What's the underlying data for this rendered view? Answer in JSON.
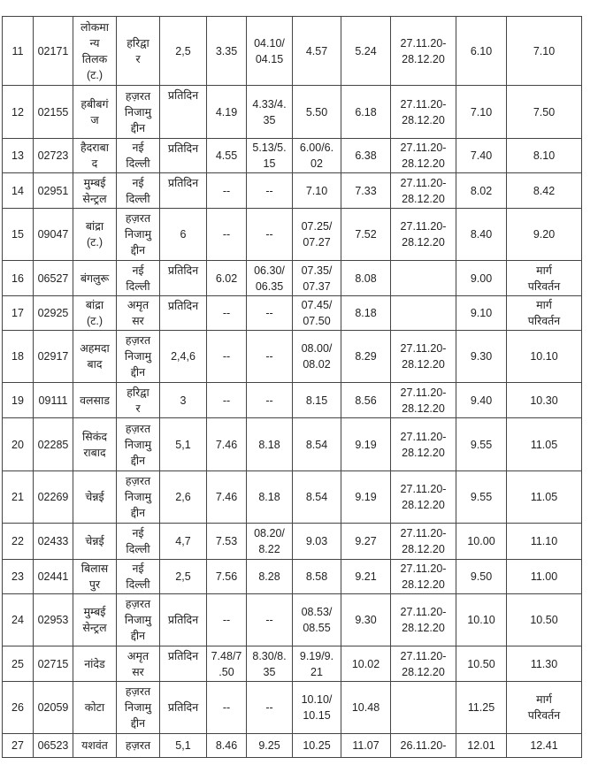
{
  "rows": [
    {
      "cells": [
        "11",
        "02171",
        "लोकमा\nन्य\nतिलक\n(ट.)",
        "हरिद्वा\nर",
        "2,5",
        "3.35",
        "04.10/\n04.15",
        "4.57",
        "5.24",
        "27.11.20-\n28.12.20",
        "6.10",
        "7.10"
      ]
    },
    {
      "cells": [
        "12",
        "02155",
        "हबीबगं\nज",
        "हज़रत\nनिजामु\nद्दीन",
        "प्रतिदिन",
        "4.19",
        "4.33/4.\n35",
        "5.50",
        "6.18",
        "27.11.20-\n28.12.20",
        "7.10",
        "7.50"
      ]
    },
    {
      "cells": [
        "13",
        "02723",
        "हैदराबा\nद",
        "नई\nदिल्ली",
        "प्रतिदिन",
        "4.55",
        "5.13/5.\n15",
        "6.00/6.\n02",
        "6.38",
        "27.11.20-\n28.12.20",
        "7.40",
        "8.10"
      ]
    },
    {
      "cells": [
        "14",
        "02951",
        "मुम्बई\nसेन्ट्रल",
        "नई\nदिल्ली",
        "प्रतिदिन",
        "--",
        "--",
        "7.10",
        "7.33",
        "27.11.20-\n28.12.20",
        "8.02",
        "8.42"
      ]
    },
    {
      "cells": [
        "15",
        "09047",
        "बांद्रा\n(ट.)",
        "हज़रत\nनिजामु\nद्दीन",
        "6",
        "--",
        "--",
        "07.25/\n07.27",
        "7.52",
        "27.11.20-\n28.12.20",
        "8.40",
        "9.20"
      ]
    },
    {
      "cells": [
        "16",
        "06527",
        "बंगलुरू",
        "नई\nदिल्ली",
        "प्रतिदिन",
        "6.02",
        "06.30/\n06.35",
        "07.35/\n07.37",
        "8.08",
        "",
        "9.00",
        "मार्ग\nपरिवर्तन"
      ]
    },
    {
      "cells": [
        "17",
        "02925",
        "बांद्रा\n(ट.)",
        "अमृत\nसर",
        "प्रतिदिन",
        "--",
        "--",
        "07.45/\n07.50",
        "8.18",
        "",
        "9.10",
        "मार्ग\nपरिवर्तन"
      ]
    },
    {
      "cells": [
        "18",
        "02917",
        "अहमदा\nबाद",
        "हज़रत\nनिजामु\nद्दीन",
        "2,4,6",
        "--",
        "--",
        "08.00/\n08.02",
        "8.29",
        "27.11.20-\n28.12.20",
        "9.30",
        "10.10"
      ]
    },
    {
      "cells": [
        "19",
        "09111",
        "वलसाड",
        "हरिद्वा\nर",
        "3",
        "--",
        "--",
        "8.15",
        "8.56",
        "27.11.20-\n28.12.20",
        "9.40",
        "10.30"
      ]
    },
    {
      "cells": [
        "20",
        "02285",
        "सिकंद\nराबाद",
        "हज़रत\nनिजामु\nद्दीन",
        "5,1",
        "7.46",
        "8.18",
        "8.54",
        "9.19",
        "27.11.20-\n28.12.20",
        "9.55",
        "11.05"
      ]
    },
    {
      "cells": [
        "21",
        "02269",
        "चेन्नई",
        "हज़रत\nनिजामु\nद्दीन",
        "2,6",
        "7.46",
        "8.18",
        "8.54",
        "9.19",
        "27.11.20-\n28.12.20",
        "9.55",
        "11.05"
      ]
    },
    {
      "cells": [
        "22",
        "02433",
        "चेन्नई",
        "नई\nदिल्ली",
        "4,7",
        "7.53",
        "08.20/\n8.22",
        "9.03",
        "9.27",
        "27.11.20-\n28.12.20",
        "10.00",
        "11.10"
      ]
    },
    {
      "cells": [
        "23",
        "02441",
        "बिलास\nपुर",
        "नई\nदिल्ली",
        "2,5",
        "7.56",
        "8.28",
        "8.58",
        "9.21",
        "27.11.20-\n28.12.20",
        "9.50",
        "11.00"
      ]
    },
    {
      "cells": [
        "24",
        "02953",
        "मुम्बई\nसेन्ट्रल",
        "हज़रत\nनिजामु\nद्दीन",
        "प्रतिदिन",
        "--",
        "--",
        "08.53/\n08.55",
        "9.30",
        "27.11.20-\n28.12.20",
        "10.10",
        "10.50"
      ]
    },
    {
      "cells": [
        "25",
        "02715",
        "नांदेड",
        "अमृत\nसर",
        "प्रतिदिन",
        "7.48/7\n.50",
        "8.30/8.\n35",
        "9.19/9.\n21",
        "10.02",
        "27.11.20-\n28.12.20",
        "10.50",
        "11.30"
      ]
    },
    {
      "cells": [
        "26",
        "02059",
        "कोटा",
        "हज़रत\nनिजामु\nद्दीन",
        "प्रतिदिन",
        "--",
        "--",
        "10.10/\n10.15",
        "10.48",
        "",
        "11.25",
        "मार्ग\nपरिवर्तन"
      ]
    },
    {
      "cells": [
        "27",
        "06523",
        "यशवंत",
        "हज़रत",
        "5,1",
        "8.46",
        "9.25",
        "10.25",
        "11.07",
        "26.11.20-",
        "12.01",
        "12.41"
      ]
    }
  ]
}
